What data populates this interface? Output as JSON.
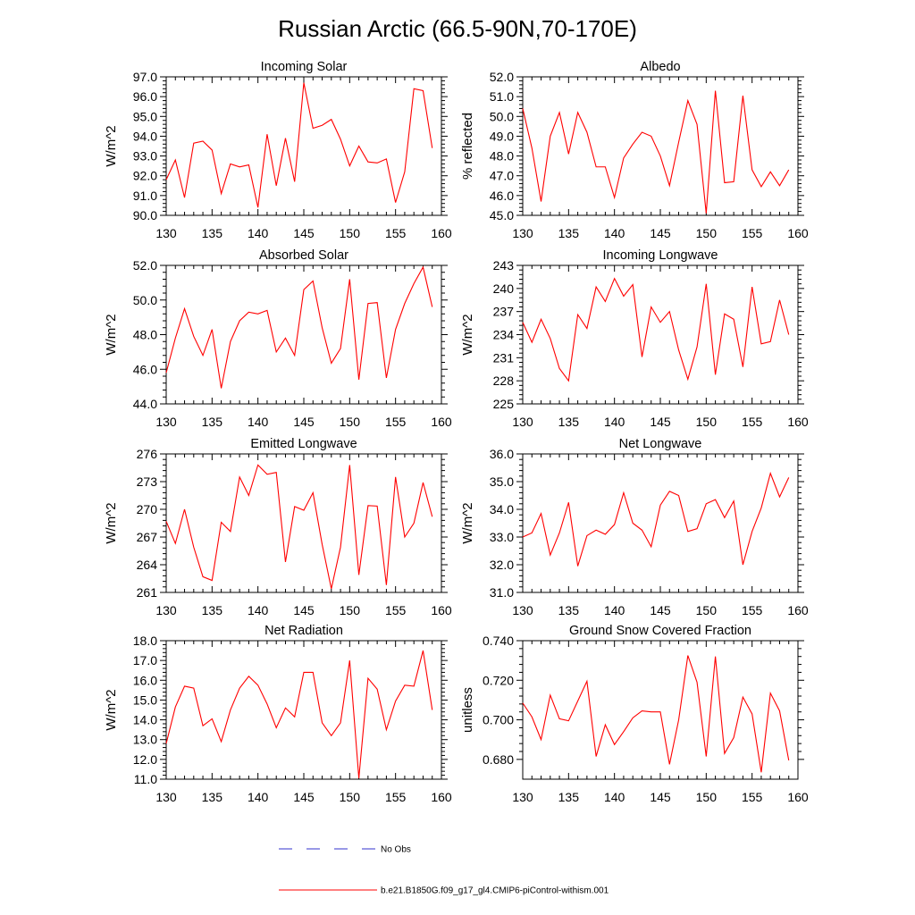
{
  "figure": {
    "title": "Russian Arctic (66.5-90N,70-170E)",
    "legend": [
      {
        "label": "No Obs",
        "color": "#3333cc",
        "dashed": true
      },
      {
        "label": "b.e21.B1850G.f09_g17_gl4.CMIP6-piControl-withism.001",
        "color": "#ff0000",
        "dashed": false
      }
    ]
  },
  "chart_data": [
    {
      "type": "line",
      "title": "Incoming Solar",
      "ylabel": "W/m^2",
      "xlim": [
        130,
        160
      ],
      "ylim": [
        90.0,
        97.0
      ],
      "x_ticks": [
        "130",
        "135",
        "140",
        "145",
        "150",
        "155",
        "160"
      ],
      "y_ticks": [
        "90.0",
        "91.0",
        "92.0",
        "93.0",
        "94.0",
        "95.0",
        "96.0",
        "97.0"
      ],
      "grid": false,
      "x": [
        130,
        131,
        132,
        133,
        134,
        135,
        136,
        137,
        138,
        139,
        140,
        141,
        142,
        143,
        144,
        145,
        146,
        147,
        148,
        149,
        150,
        151,
        152,
        153,
        154,
        155,
        156,
        157,
        158,
        159
      ],
      "series": [
        {
          "values": [
            91.8,
            92.8,
            90.9,
            93.65,
            93.75,
            93.3,
            91.1,
            92.6,
            92.45,
            92.55,
            90.4,
            94.1,
            91.5,
            93.9,
            91.7,
            96.7,
            94.4,
            94.55,
            94.85,
            93.85,
            92.5,
            93.5,
            92.7,
            92.65,
            92.85,
            90.65,
            92.2,
            96.4,
            96.3,
            93.4
          ]
        }
      ]
    },
    {
      "type": "line",
      "title": "Albedo",
      "ylabel": "% reflected",
      "xlim": [
        130,
        160
      ],
      "ylim": [
        45.0,
        52.0
      ],
      "x_ticks": [
        "130",
        "135",
        "140",
        "145",
        "150",
        "155",
        "160"
      ],
      "y_ticks": [
        "45.0",
        "46.0",
        "47.0",
        "48.0",
        "49.0",
        "50.0",
        "51.0",
        "52.0"
      ],
      "grid": false,
      "x": [
        130,
        131,
        132,
        133,
        134,
        135,
        136,
        137,
        138,
        139,
        140,
        141,
        142,
        143,
        144,
        145,
        146,
        147,
        148,
        149,
        150,
        151,
        152,
        153,
        154,
        155,
        156,
        157,
        158,
        159
      ],
      "series": [
        {
          "values": [
            50.4,
            48.4,
            45.7,
            49.0,
            50.2,
            48.1,
            50.2,
            49.2,
            47.45,
            47.45,
            45.9,
            47.9,
            48.6,
            49.2,
            49.0,
            48.0,
            46.5,
            48.7,
            50.8,
            49.6,
            45.1,
            51.3,
            46.65,
            46.7,
            51.05,
            47.3,
            46.45,
            47.2,
            46.5,
            47.3
          ]
        }
      ]
    },
    {
      "type": "line",
      "title": "Absorbed Solar",
      "ylabel": "W/m^2",
      "xlim": [
        130,
        160
      ],
      "ylim": [
        44.0,
        52.0
      ],
      "x_ticks": [
        "130",
        "135",
        "140",
        "145",
        "150",
        "155",
        "160"
      ],
      "y_ticks": [
        "44.0",
        "46.0",
        "48.0",
        "50.0",
        "52.0"
      ],
      "grid": false,
      "x": [
        130,
        131,
        132,
        133,
        134,
        135,
        136,
        137,
        138,
        139,
        140,
        141,
        142,
        143,
        144,
        145,
        146,
        147,
        148,
        149,
        150,
        151,
        152,
        153,
        154,
        155,
        156,
        157,
        158,
        159
      ],
      "series": [
        {
          "values": [
            45.8,
            47.8,
            49.5,
            47.9,
            46.8,
            48.3,
            44.9,
            47.6,
            48.8,
            49.3,
            49.2,
            49.4,
            47.0,
            47.8,
            46.8,
            50.6,
            51.1,
            48.4,
            46.35,
            47.2,
            51.2,
            45.4,
            49.8,
            49.85,
            45.5,
            48.3,
            49.8,
            50.95,
            51.9,
            49.6
          ]
        }
      ]
    },
    {
      "type": "line",
      "title": "Incoming Longwave",
      "ylabel": "W/m^2",
      "xlim": [
        130,
        160
      ],
      "ylim": [
        225,
        243
      ],
      "x_ticks": [
        "130",
        "135",
        "140",
        "145",
        "150",
        "155",
        "160"
      ],
      "y_ticks": [
        "225",
        "228",
        "231",
        "234",
        "237",
        "240",
        "243"
      ],
      "grid": false,
      "x": [
        130,
        131,
        132,
        133,
        134,
        135,
        136,
        137,
        138,
        139,
        140,
        141,
        142,
        143,
        144,
        145,
        146,
        147,
        148,
        149,
        150,
        151,
        152,
        153,
        154,
        155,
        156,
        157,
        158,
        159
      ],
      "series": [
        {
          "values": [
            235.6,
            233.0,
            236.0,
            233.5,
            229.6,
            228.0,
            236.6,
            234.8,
            240.2,
            238.3,
            241.3,
            239.0,
            240.5,
            231.1,
            237.6,
            235.6,
            237.0,
            232.0,
            228.2,
            232.4,
            240.6,
            228.8,
            236.7,
            236.0,
            229.8,
            240.2,
            232.8,
            233.1,
            238.5,
            234.0
          ]
        }
      ]
    },
    {
      "type": "line",
      "title": "Emitted Longwave",
      "ylabel": "W/m^2",
      "xlim": [
        130,
        160
      ],
      "ylim": [
        261,
        276
      ],
      "x_ticks": [
        "130",
        "135",
        "140",
        "145",
        "150",
        "155",
        "160"
      ],
      "y_ticks": [
        "261",
        "264",
        "267",
        "270",
        "273",
        "276"
      ],
      "grid": false,
      "x": [
        130,
        131,
        132,
        133,
        134,
        135,
        136,
        137,
        138,
        139,
        140,
        141,
        142,
        143,
        144,
        145,
        146,
        147,
        148,
        149,
        150,
        151,
        152,
        153,
        154,
        155,
        156,
        157,
        158,
        159
      ],
      "series": [
        {
          "values": [
            268.7,
            266.3,
            270.0,
            265.9,
            262.7,
            262.3,
            268.6,
            267.6,
            273.5,
            271.5,
            274.8,
            273.8,
            274.0,
            264.3,
            270.3,
            269.9,
            271.8,
            266.2,
            261.4,
            265.9,
            274.8,
            262.9,
            270.4,
            270.35,
            261.8,
            273.5,
            267.0,
            268.5,
            272.9,
            269.2
          ]
        }
      ]
    },
    {
      "type": "line",
      "title": "Net Longwave",
      "ylabel": "W/m^2",
      "xlim": [
        130,
        160
      ],
      "ylim": [
        31.0,
        36.0
      ],
      "x_ticks": [
        "130",
        "135",
        "140",
        "145",
        "150",
        "155",
        "160"
      ],
      "y_ticks": [
        "31.0",
        "32.0",
        "33.0",
        "34.0",
        "35.0",
        "36.0"
      ],
      "grid": false,
      "x": [
        130,
        131,
        132,
        133,
        134,
        135,
        136,
        137,
        138,
        139,
        140,
        141,
        142,
        143,
        144,
        145,
        146,
        147,
        148,
        149,
        150,
        151,
        152,
        153,
        154,
        155,
        156,
        157,
        158,
        159
      ],
      "series": [
        {
          "values": [
            33.0,
            33.15,
            33.85,
            32.35,
            33.15,
            34.25,
            31.95,
            33.05,
            33.25,
            33.1,
            33.45,
            34.6,
            33.5,
            33.25,
            32.65,
            34.15,
            34.65,
            34.5,
            33.2,
            33.3,
            34.2,
            34.35,
            33.7,
            34.3,
            32.0,
            33.2,
            34.05,
            35.3,
            34.45,
            35.15
          ]
        }
      ]
    },
    {
      "type": "line",
      "title": "Net Radiation",
      "ylabel": "W/m^2",
      "xlim": [
        130,
        160
      ],
      "ylim": [
        11.0,
        18.0
      ],
      "x_ticks": [
        "130",
        "135",
        "140",
        "145",
        "150",
        "155",
        "160"
      ],
      "y_ticks": [
        "11.0",
        "12.0",
        "13.0",
        "14.0",
        "15.0",
        "16.0",
        "17.0",
        "18.0"
      ],
      "grid": false,
      "x": [
        130,
        131,
        132,
        133,
        134,
        135,
        136,
        137,
        138,
        139,
        140,
        141,
        142,
        143,
        144,
        145,
        146,
        147,
        148,
        149,
        150,
        151,
        152,
        153,
        154,
        155,
        156,
        157,
        158,
        159
      ],
      "series": [
        {
          "values": [
            12.8,
            14.65,
            15.7,
            15.6,
            13.7,
            14.05,
            12.9,
            14.5,
            15.6,
            16.2,
            15.75,
            14.8,
            13.6,
            14.6,
            14.15,
            16.4,
            16.4,
            13.85,
            13.2,
            13.85,
            17.0,
            11.05,
            16.1,
            15.55,
            13.5,
            14.95,
            15.75,
            15.7,
            17.5,
            14.5
          ]
        }
      ]
    },
    {
      "type": "line",
      "title": "Ground Snow Covered Fraction",
      "ylabel": "unitless",
      "xlim": [
        130,
        160
      ],
      "ylim": [
        0.67,
        0.74
      ],
      "x_ticks": [
        "130",
        "135",
        "140",
        "145",
        "150",
        "155",
        "160"
      ],
      "y_ticks": [
        "0.680",
        "0.700",
        "0.720",
        "0.740"
      ],
      "grid": false,
      "x": [
        130,
        131,
        132,
        133,
        134,
        135,
        136,
        137,
        138,
        139,
        140,
        141,
        142,
        143,
        144,
        145,
        146,
        147,
        148,
        149,
        150,
        151,
        152,
        153,
        154,
        155,
        156,
        157,
        158,
        159
      ],
      "series": [
        {
          "values": [
            0.7085,
            0.7015,
            0.69,
            0.7125,
            0.7005,
            0.6995,
            0.7095,
            0.7195,
            0.6815,
            0.6975,
            0.6875,
            0.694,
            0.701,
            0.7045,
            0.704,
            0.704,
            0.6775,
            0.7,
            0.7325,
            0.719,
            0.6815,
            0.732,
            0.683,
            0.691,
            0.7115,
            0.703,
            0.6735,
            0.7135,
            0.7045,
            0.6795
          ]
        }
      ]
    }
  ]
}
